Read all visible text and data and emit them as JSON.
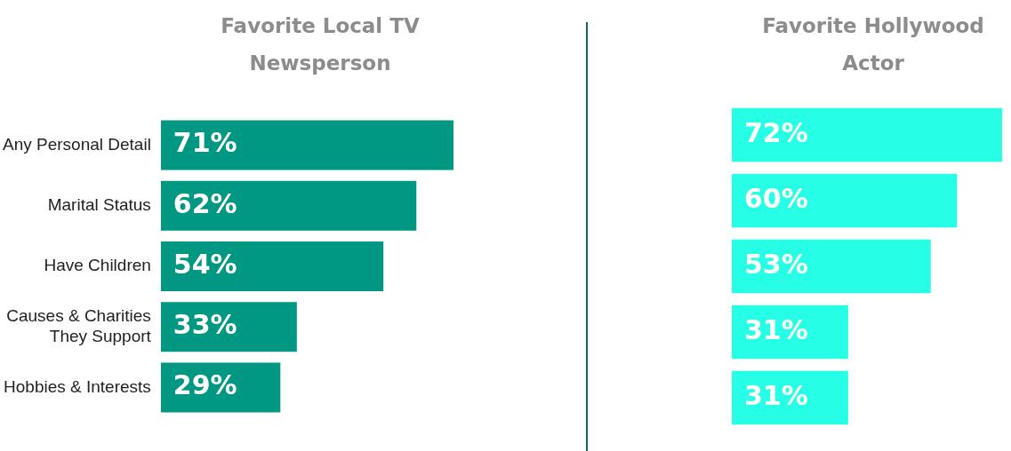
{
  "chart_data": [
    {
      "type": "bar",
      "title": "Favorite Local TV Newsperson",
      "orientation": "horizontal",
      "categories": [
        "Any Personal Detail",
        "Marital Status",
        "Have Children",
        "Causes & Charities They Support",
        "Hobbies & Interests"
      ],
      "values": [
        71,
        62,
        54,
        33,
        29
      ],
      "value_labels": [
        "71%",
        "62%",
        "54%",
        "33%",
        "29%"
      ],
      "color": "#009882",
      "tick_labels": "y"
    },
    {
      "type": "bar",
      "title": "Favorite Hollywood Actor",
      "orientation": "horizontal",
      "categories": [
        null,
        null,
        null,
        null,
        null
      ],
      "values": [
        72,
        60,
        53,
        31,
        31
      ],
      "value_labels": [
        "72%",
        "60%",
        "53%",
        "31%",
        "31%"
      ],
      "color": "#26ffe6",
      "tick_labels": false
    }
  ]
}
